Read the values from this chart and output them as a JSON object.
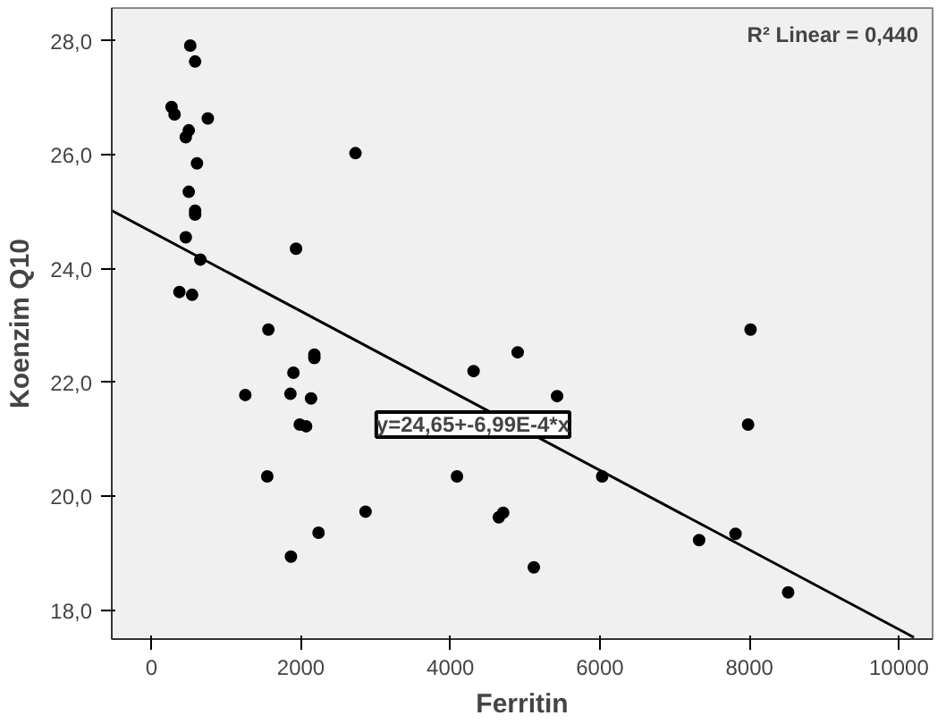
{
  "chart_data": {
    "type": "scatter",
    "xlabel": "Ferritin",
    "ylabel": "Koenzim Q10",
    "xlim": [
      -530,
      10450
    ],
    "ylim": [
      17.49,
      28.58
    ],
    "xticks": [
      0,
      2000,
      4000,
      6000,
      8000,
      10000
    ],
    "yticks": [
      {
        "value": 18,
        "label": "18,0"
      },
      {
        "value": 20,
        "label": "20,0"
      },
      {
        "value": 22,
        "label": "22,0"
      },
      {
        "value": 24,
        "label": "24,0"
      },
      {
        "value": 26,
        "label": "26,0"
      },
      {
        "value": 28,
        "label": "28,0"
      }
    ],
    "grid": false,
    "series": [
      {
        "marker": "circle",
        "color": "#000000",
        "x": [
          520,
          585,
          270,
          310,
          755,
          500,
          460,
          610,
          2730,
          500,
          585,
          585,
          460,
          655,
          375,
          545,
          1935,
          1565,
          2180,
          2180,
          4310,
          4900,
          1256,
          1860,
          1900,
          2136,
          1985,
          2070,
          1550,
          2865,
          2236,
          1867,
          4088,
          4648,
          4706,
          5427,
          7982,
          6030,
          7327,
          7814,
          8518,
          5116,
          8015
        ],
        "values": [
          27.92,
          27.64,
          26.84,
          26.71,
          26.64,
          26.43,
          26.31,
          25.85,
          26.03,
          25.35,
          25.02,
          24.95,
          24.55,
          24.16,
          23.59,
          23.54,
          24.35,
          22.93,
          22.49,
          22.43,
          22.2,
          22.53,
          21.78,
          21.8,
          22.17,
          21.72,
          21.26,
          21.23,
          20.35,
          19.73,
          19.36,
          18.94,
          20.35,
          19.63,
          19.71,
          21.76,
          21.26,
          20.35,
          19.23,
          19.34,
          18.31,
          18.75,
          22.93
        ]
      },
      {
        "type": "line",
        "color": "#000000",
        "x": [
          -530,
          10200
        ],
        "values": [
          25.02,
          17.52
        ]
      }
    ],
    "annotations": [
      "R² Linear = 0,440",
      "y=24,65+-6,99E-4*x"
    ]
  }
}
